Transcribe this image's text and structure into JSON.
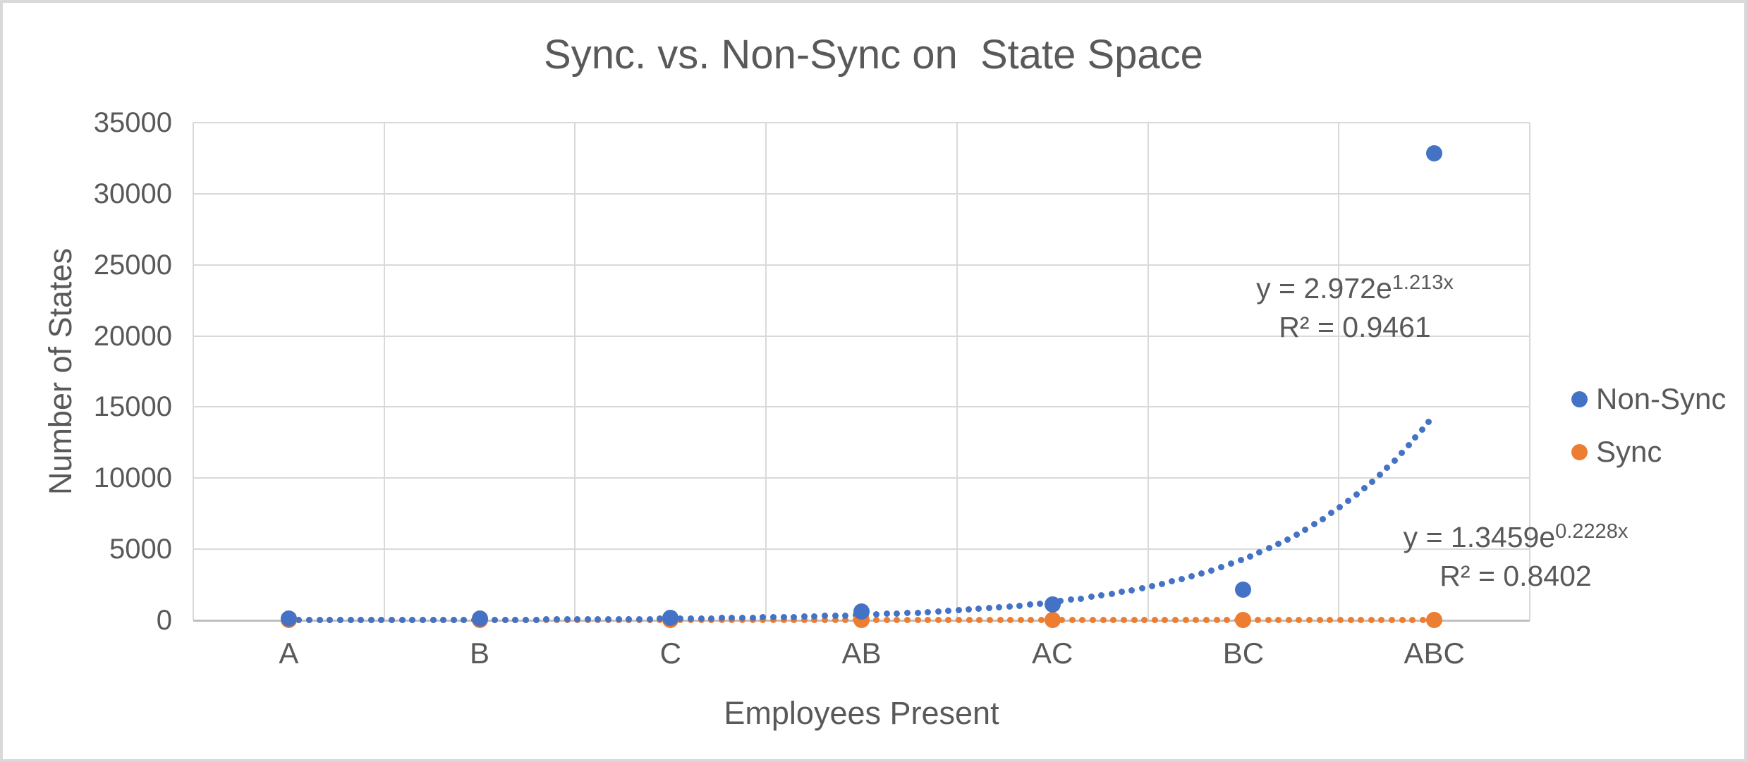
{
  "chart_data": {
    "type": "scatter",
    "title": "Sync. vs. Non-Sync on  State Space",
    "xlabel": "Employees Present",
    "ylabel": "Number of States",
    "categories": [
      "A",
      "B",
      "C",
      "AB",
      "AC",
      "BC",
      "ABC"
    ],
    "x_values": [
      1,
      2,
      3,
      4,
      5,
      6,
      7
    ],
    "series": [
      {
        "name": "Non-Sync",
        "color": "#4472C4",
        "values": [
          16,
          32,
          64,
          512,
          1024,
          2048,
          32768
        ],
        "trendline": {
          "type": "exponential",
          "a": 2.972,
          "b": 1.213,
          "equation_base": "y = 2.972e",
          "equation_exponent": "1.213x",
          "r_squared": "R² = 0.9461"
        }
      },
      {
        "name": "Sync",
        "color": "#ED7D31",
        "values": [
          2,
          2,
          2,
          4,
          4,
          4,
          8
        ],
        "trendline": {
          "type": "exponential",
          "a": 1.3459,
          "b": 0.2228,
          "equation_base": "y = 1.3459e",
          "equation_exponent": "0.2228x",
          "r_squared": "R² = 0.8402"
        }
      }
    ],
    "ylim": [
      0,
      35000
    ],
    "y_ticks": [
      0,
      5000,
      10000,
      15000,
      20000,
      25000,
      30000,
      35000
    ],
    "xlim": [
      0.5,
      7.5
    ],
    "grid": true,
    "legend_position": "right"
  },
  "colors": {
    "background": "#FFFFFF",
    "frame_border": "#D9D9D9",
    "gridline": "#D9D9D9",
    "axis_line": "#BFBFBF",
    "text": "#595959",
    "non_sync": "#4472C4",
    "sync": "#ED7D31"
  }
}
